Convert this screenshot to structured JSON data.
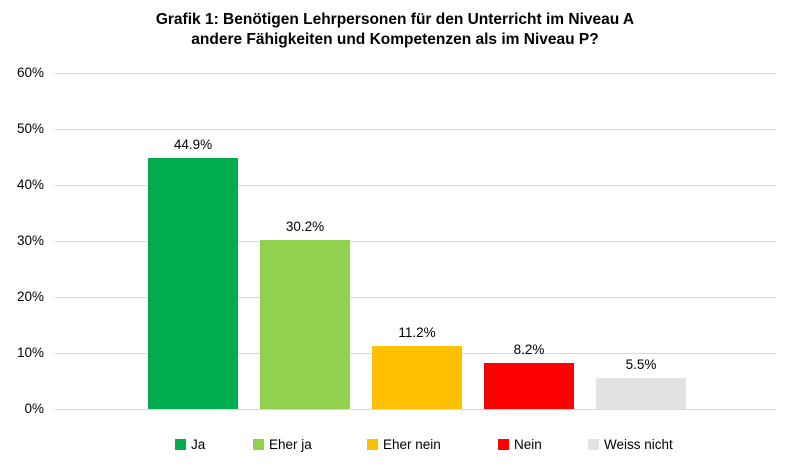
{
  "title": {
    "line1": "Grafik 1: Benötigen Lehrpersonen für den Unterricht im Niveau A",
    "line2": "andere Fähigkeiten und Kompetenzen als im Niveau P?"
  },
  "chart_data": {
    "type": "bar",
    "title": "Grafik 1: Benötigen Lehrpersonen für den Unterricht im Niveau A andere Fähigkeiten und Kompetenzen als im Niveau P?",
    "categories": [
      "Ja",
      "Eher ja",
      "Eher nein",
      "Nein",
      "Weiss nicht"
    ],
    "values": [
      44.9,
      30.2,
      11.2,
      8.2,
      5.5
    ],
    "value_labels": [
      "44.9%",
      "30.2%",
      "11.2%",
      "8.2%",
      "5.5%"
    ],
    "bar_colors": [
      "#00AC4E",
      "#92D050",
      "#FFC000",
      "#FF0000",
      "#E2E2E2"
    ],
    "ylabel": "",
    "xlabel": "",
    "ylim": [
      0,
      60
    ],
    "ytick_labels": [
      "0%",
      "10%",
      "20%",
      "30%",
      "40%",
      "50%",
      "60%"
    ],
    "grid": true,
    "gridline_color": "#D9D9D9",
    "legend": {
      "position": "bottom",
      "entries": [
        "Ja",
        "Eher ja",
        "Eher nein",
        "Nein",
        "Weiss nicht"
      ]
    }
  }
}
